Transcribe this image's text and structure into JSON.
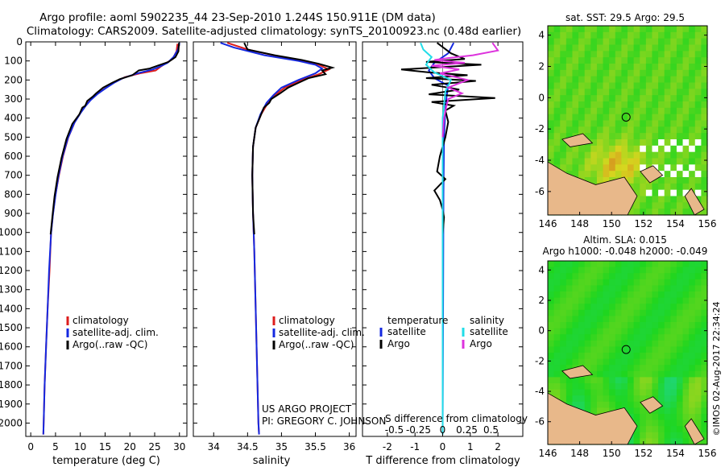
{
  "header": {
    "title_line1": "Argo profile: aoml 5902235_44 23-Sep-2010 1.244S 150.911E (DM data)",
    "title_line2": "Climatology: CARS2009. Satellite-adjusted climatology: synTS_20100923.nc (0.48d earlier)"
  },
  "colors": {
    "climatology": "#dd1c1c",
    "satellite": "#1428e0",
    "argo": "#000000",
    "sal_satellite": "#22dde8",
    "sal_argo": "#dd33dd",
    "land": "#e8b88a",
    "ocean": "#3cc83c"
  },
  "footer": {
    "project": "US ARGO PROJECT",
    "pi": "PI: GREGORY C. JOHNSON",
    "stamp": "©IMOS 02-Aug-2017 22:34:24"
  },
  "chart_data": [
    {
      "type": "line",
      "id": "temperature",
      "xlabel": "temperature (deg C)",
      "ylabel": "",
      "xlim": [
        -1,
        31.5
      ],
      "ylim": [
        2070,
        0
      ],
      "xticks": [
        0,
        5,
        10,
        15,
        20,
        25,
        30
      ],
      "xtick_labels": [
        "0",
        "5",
        "10",
        "15",
        "20",
        "25",
        "30"
      ],
      "yticks": [
        0,
        100,
        200,
        300,
        400,
        500,
        600,
        700,
        800,
        900,
        1000,
        1100,
        1200,
        1300,
        1400,
        1500,
        1600,
        1700,
        1800,
        1900,
        2000
      ],
      "ytick_labels": [
        "0",
        "100",
        "200",
        "300",
        "400",
        "500",
        "600",
        "700",
        "800",
        "900",
        "1000",
        "1100",
        "1200",
        "1300",
        "1400",
        "1500",
        "1600",
        "1700",
        "1800",
        "1900",
        "2000"
      ],
      "legend": [
        "climatology",
        "satellite-adj. clim.",
        "Argo(..raw -QC)"
      ],
      "series": [
        {
          "name": "climatology",
          "color": "#dd1c1c",
          "points": [
            [
              29.6,
              10
            ],
            [
              29.4,
              50
            ],
            [
              28.6,
              90
            ],
            [
              27.4,
              110
            ],
            [
              26.2,
              130
            ],
            [
              25.2,
              150
            ],
            [
              22.0,
              165
            ],
            [
              19.0,
              185
            ],
            [
              17.0,
              210
            ],
            [
              15.2,
              240
            ],
            [
              13.6,
              270
            ],
            [
              12.2,
              300
            ],
            [
              11.2,
              330
            ],
            [
              10.1,
              370
            ],
            [
              8.9,
              420
            ],
            [
              7.6,
              500
            ],
            [
              6.5,
              600
            ],
            [
              5.7,
              700
            ],
            [
              5.0,
              800
            ],
            [
              4.5,
              900
            ],
            [
              4.1,
              1000
            ],
            [
              3.8,
              1200
            ],
            [
              3.4,
              1400
            ],
            [
              3.1,
              1600
            ],
            [
              2.8,
              1800
            ],
            [
              2.6,
              2000
            ],
            [
              2.55,
              2060
            ]
          ]
        },
        {
          "name": "satellite-adj. clim.",
          "color": "#1428e0",
          "points": [
            [
              30.0,
              5
            ],
            [
              29.7,
              40
            ],
            [
              28.8,
              80
            ],
            [
              27.6,
              110
            ],
            [
              26.0,
              130
            ],
            [
              24.6,
              145
            ],
            [
              21.5,
              165
            ],
            [
              18.6,
              190
            ],
            [
              16.8,
              215
            ],
            [
              15.0,
              245
            ],
            [
              13.4,
              275
            ],
            [
              12.1,
              305
            ],
            [
              11.1,
              335
            ],
            [
              10.0,
              375
            ],
            [
              8.8,
              425
            ],
            [
              7.5,
              505
            ],
            [
              6.4,
              605
            ],
            [
              5.6,
              705
            ],
            [
              5.0,
              805
            ],
            [
              4.5,
              905
            ],
            [
              4.1,
              1005
            ],
            [
              3.7,
              1200
            ],
            [
              3.4,
              1400
            ],
            [
              3.1,
              1600
            ],
            [
              2.8,
              1800
            ],
            [
              2.6,
              2000
            ],
            [
              2.55,
              2060
            ]
          ]
        },
        {
          "name": "Argo(..raw -QC)",
          "color": "#000000",
          "points": [
            [
              29.9,
              5
            ],
            [
              29.8,
              50
            ],
            [
              29.2,
              80
            ],
            [
              27.8,
              105
            ],
            [
              25.6,
              125
            ],
            [
              24.0,
              140
            ],
            [
              21.8,
              150
            ],
            [
              20.5,
              175
            ],
            [
              18.0,
              195
            ],
            [
              16.4,
              215
            ],
            [
              14.6,
              240
            ],
            [
              13.2,
              270
            ],
            [
              12.6,
              285
            ],
            [
              11.4,
              310
            ],
            [
              11.0,
              335
            ],
            [
              10.4,
              345
            ],
            [
              9.8,
              380
            ],
            [
              8.4,
              430
            ],
            [
              7.2,
              510
            ],
            [
              6.2,
              610
            ],
            [
              5.4,
              710
            ],
            [
              4.8,
              810
            ],
            [
              4.4,
              910
            ],
            [
              4.0,
              1010
            ]
          ]
        }
      ]
    },
    {
      "type": "line",
      "id": "salinity",
      "xlabel": "salinity",
      "ylabel": "",
      "xlim": [
        33.7,
        36.1
      ],
      "ylim": [
        2070,
        0
      ],
      "xticks": [
        34,
        34.5,
        35,
        35.5,
        36
      ],
      "xtick_labels": [
        "34",
        "34.5",
        "35",
        "35.5",
        "36"
      ],
      "legend": [
        "climatology",
        "satellite-adj. clim.",
        "Argo(..raw -QC)"
      ],
      "series": [
        {
          "name": "climatology",
          "color": "#dd1c1c",
          "points": [
            [
              34.2,
              5
            ],
            [
              34.5,
              40
            ],
            [
              34.95,
              75
            ],
            [
              35.3,
              100
            ],
            [
              35.55,
              120
            ],
            [
              35.7,
              145
            ],
            [
              35.55,
              170
            ],
            [
              35.3,
              200
            ],
            [
              35.05,
              240
            ],
            [
              34.9,
              280
            ],
            [
              34.8,
              320
            ],
            [
              34.7,
              380
            ],
            [
              34.62,
              450
            ],
            [
              34.58,
              550
            ],
            [
              34.57,
              700
            ],
            [
              34.58,
              900
            ],
            [
              34.6,
              1100
            ],
            [
              34.62,
              1400
            ],
            [
              34.64,
              1700
            ],
            [
              34.66,
              2000
            ],
            [
              34.67,
              2060
            ]
          ]
        },
        {
          "name": "satellite-adj. clim.",
          "color": "#1428e0",
          "points": [
            [
              34.1,
              5
            ],
            [
              34.3,
              30
            ],
            [
              34.75,
              70
            ],
            [
              35.25,
              100
            ],
            [
              35.5,
              120
            ],
            [
              35.6,
              140
            ],
            [
              35.5,
              165
            ],
            [
              35.25,
              200
            ],
            [
              35.0,
              240
            ],
            [
              34.88,
              280
            ],
            [
              34.78,
              320
            ],
            [
              34.69,
              380
            ],
            [
              34.62,
              450
            ],
            [
              34.58,
              550
            ],
            [
              34.57,
              700
            ],
            [
              34.58,
              900
            ],
            [
              34.6,
              1100
            ],
            [
              34.62,
              1400
            ],
            [
              34.64,
              1700
            ],
            [
              34.66,
              2000
            ],
            [
              34.67,
              2060
            ]
          ]
        },
        {
          "name": "Argo(..raw -QC)",
          "color": "#000000",
          "points": [
            [
              34.45,
              5
            ],
            [
              34.5,
              40
            ],
            [
              34.9,
              70
            ],
            [
              35.3,
              95
            ],
            [
              35.55,
              115
            ],
            [
              35.75,
              135
            ],
            [
              35.6,
              150
            ],
            [
              35.65,
              170
            ],
            [
              35.4,
              190
            ],
            [
              35.25,
              215
            ],
            [
              35.1,
              240
            ],
            [
              34.98,
              270
            ],
            [
              34.85,
              300
            ],
            [
              34.82,
              320
            ],
            [
              34.74,
              345
            ],
            [
              34.7,
              380
            ],
            [
              34.62,
              450
            ],
            [
              34.58,
              550
            ],
            [
              34.57,
              700
            ],
            [
              34.58,
              900
            ],
            [
              34.6,
              1010
            ]
          ]
        }
      ]
    },
    {
      "type": "line",
      "id": "difference",
      "xlabel_bottom": "T difference from climatology",
      "xlabel_top": "S difference from climatology",
      "xlim": [
        -2.9,
        2.9
      ],
      "ylim": [
        2070,
        0
      ],
      "xticks_T": [
        -2,
        -1,
        0,
        1,
        2
      ],
      "xtick_labels_T": [
        "-2",
        "-1",
        "0",
        "1",
        "2"
      ],
      "xticks_S_pos": [
        -1.75,
        -0.875,
        0,
        0.875,
        1.75
      ],
      "xtick_labels_S": [
        "-0.5",
        "-0.25",
        "0",
        "0.25",
        "0.5"
      ],
      "legend_temperature": {
        "title": "temperature",
        "items": [
          "satellite",
          "Argo"
        ]
      },
      "legend_salinity": {
        "title": "salinity",
        "items": [
          "satellite",
          "Argo"
        ]
      },
      "series": [
        {
          "name": "temperature satellite",
          "color": "#1428e0",
          "points": [
            [
              0.4,
              5
            ],
            [
              0.2,
              60
            ],
            [
              -0.3,
              110
            ],
            [
              -0.5,
              150
            ],
            [
              -0.3,
              190
            ],
            [
              0.2,
              230
            ],
            [
              0.15,
              280
            ],
            [
              0.1,
              350
            ],
            [
              0.05,
              500
            ],
            [
              0.03,
              800
            ],
            [
              0.02,
              1200
            ],
            [
              0.0,
              2060
            ]
          ]
        },
        {
          "name": "temperature Argo",
          "color": "#000000",
          "points": [
            [
              -0.2,
              5
            ],
            [
              0.3,
              60
            ],
            [
              0.8,
              90
            ],
            [
              -0.6,
              105
            ],
            [
              1.4,
              120
            ],
            [
              -1.5,
              145
            ],
            [
              -0.5,
              160
            ],
            [
              0.9,
              175
            ],
            [
              -0.6,
              190
            ],
            [
              1.2,
              205
            ],
            [
              -0.4,
              225
            ],
            [
              0.6,
              250
            ],
            [
              -0.5,
              275
            ],
            [
              1.9,
              295
            ],
            [
              -0.4,
              315
            ],
            [
              0.4,
              335
            ],
            [
              0.1,
              360
            ],
            [
              0.2,
              420
            ],
            [
              0.1,
              500
            ],
            [
              -0.1,
              600
            ],
            [
              -0.2,
              680
            ],
            [
              0.1,
              720
            ],
            [
              -0.3,
              780
            ],
            [
              -0.1,
              830
            ],
            [
              0.0,
              880
            ],
            [
              0.05,
              920
            ],
            [
              0.0,
              1010
            ]
          ]
        },
        {
          "name": "salinity satellite",
          "color": "#22dde8",
          "points": [
            [
              -0.8,
              5
            ],
            [
              -0.7,
              40
            ],
            [
              -0.4,
              80
            ],
            [
              -0.6,
              120
            ],
            [
              -0.3,
              160
            ],
            [
              0.3,
              200
            ],
            [
              0.1,
              260
            ],
            [
              0.0,
              400
            ],
            [
              0.0,
              2060
            ]
          ]
        },
        {
          "name": "salinity Argo",
          "color": "#dd33dd",
          "points": [
            [
              1.8,
              5
            ],
            [
              2.0,
              45
            ],
            [
              1.1,
              70
            ],
            [
              0.2,
              85
            ],
            [
              -0.3,
              95
            ],
            [
              0.8,
              110
            ],
            [
              -0.4,
              125
            ],
            [
              0.6,
              145
            ],
            [
              -0.1,
              165
            ],
            [
              0.9,
              200
            ],
            [
              0.2,
              240
            ],
            [
              0.7,
              270
            ],
            [
              0.2,
              300
            ],
            [
              0.15,
              330
            ],
            [
              0.05,
              400
            ],
            [
              0.0,
              500
            ]
          ]
        }
      ]
    },
    {
      "type": "heatmap",
      "id": "map_sst",
      "title": "sat. SST: 29.5 Argo: 29.5",
      "xlim": [
        146,
        156
      ],
      "ylim": [
        -7.5,
        4.6
      ],
      "xticks": [
        146,
        148,
        150,
        152,
        154,
        156
      ],
      "xtick_labels": [
        "146",
        "148",
        "150",
        "152",
        "154",
        "156"
      ],
      "yticks": [
        4,
        2,
        0,
        -2,
        -4,
        -6
      ],
      "ytick_labels": [
        "4",
        "2",
        "0",
        "-2",
        "-4",
        "-6"
      ],
      "marker": {
        "lon": 150.911,
        "lat": -1.244
      }
    },
    {
      "type": "heatmap",
      "id": "map_sla",
      "title_line1": "Altim. SLA: 0.015",
      "title_line2": "Argo h1000: -0.048 h2000: -0.049",
      "xlim": [
        146,
        156
      ],
      "ylim": [
        -7.5,
        4.6
      ],
      "xticks": [
        146,
        148,
        150,
        152,
        154,
        156
      ],
      "xtick_labels": [
        "146",
        "148",
        "150",
        "152",
        "154",
        "156"
      ],
      "yticks": [
        4,
        2,
        0,
        -2,
        -4,
        -6
      ],
      "ytick_labels": [
        "4",
        "2",
        "0",
        "-2",
        "-4",
        "-6"
      ],
      "marker": {
        "lon": 150.911,
        "lat": -1.244
      }
    }
  ]
}
